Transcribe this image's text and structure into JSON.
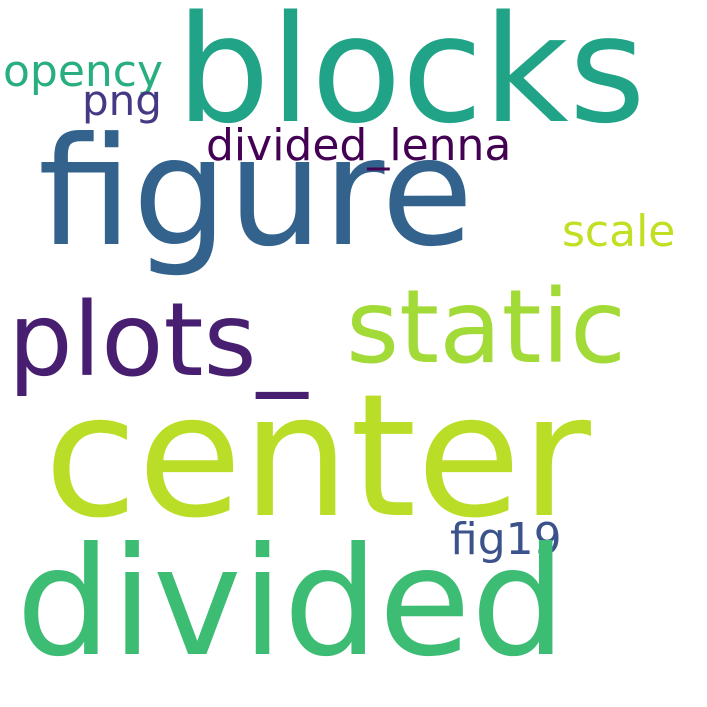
{
  "background": "#ffffff",
  "words": {
    "blocks": {
      "text": "blocks",
      "color": "#20a387"
    },
    "opency": {
      "text": "opency",
      "color": "#29af7f"
    },
    "png": {
      "text": "png",
      "color": "#443983"
    },
    "divided_lenna": {
      "text": "divided_lenna",
      "color": "#440154"
    },
    "figure": {
      "text": "figure",
      "color": "#33638d"
    },
    "scale": {
      "text": "scale",
      "color": "#c2df23"
    },
    "plots_underscore": {
      "text": "plots_",
      "color": "#481f70"
    },
    "static": {
      "text": "static",
      "color": "#a2da37"
    },
    "center": {
      "text": "center",
      "color": "#bade28"
    },
    "fig19": {
      "text": "fig19",
      "color": "#3b528b"
    },
    "divided": {
      "text": "divided",
      "color": "#3dbc74"
    }
  }
}
